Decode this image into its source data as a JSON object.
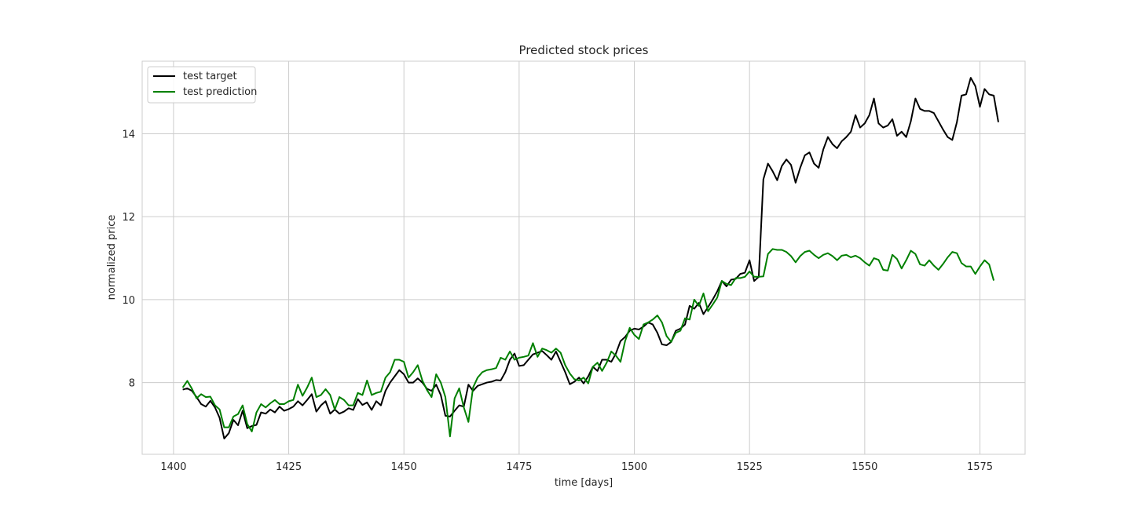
{
  "chart_data": {
    "type": "line",
    "title": "Predicted stock prices",
    "xlabel": "time [days]",
    "ylabel": "normalized price",
    "xlim": [
      1393.2,
      1584.8
    ],
    "ylim": [
      6.27,
      15.75
    ],
    "xticks": [
      1400,
      1425,
      1450,
      1475,
      1500,
      1525,
      1550,
      1575
    ],
    "yticks": [
      8,
      10,
      12,
      14
    ],
    "grid": true,
    "legend_position": "upper-left",
    "x_start": 1402,
    "colors": {
      "test_target": "#000000",
      "test_prediction": "#008000",
      "grid": "#cccccc",
      "axes": "#cccccc"
    },
    "series": [
      {
        "name": "test target",
        "color": "#000000",
        "values": [
          7.83,
          7.86,
          7.8,
          7.65,
          7.48,
          7.42,
          7.56,
          7.4,
          7.15,
          6.65,
          6.78,
          7.1,
          6.97,
          7.32,
          6.9,
          6.95,
          6.98,
          7.28,
          7.25,
          7.35,
          7.28,
          7.42,
          7.32,
          7.36,
          7.42,
          7.55,
          7.45,
          7.58,
          7.72,
          7.3,
          7.45,
          7.55,
          7.25,
          7.35,
          7.25,
          7.3,
          7.38,
          7.34,
          7.6,
          7.46,
          7.52,
          7.34,
          7.55,
          7.45,
          7.8,
          8.0,
          8.15,
          8.3,
          8.2,
          8.0,
          8.0,
          8.1,
          8.0,
          7.85,
          7.8,
          7.95,
          7.7,
          7.2,
          7.18,
          7.32,
          7.45,
          7.42,
          7.95,
          7.8,
          7.92,
          7.96,
          8.0,
          8.02,
          8.06,
          8.05,
          8.25,
          8.55,
          8.7,
          8.4,
          8.42,
          8.55,
          8.68,
          8.72,
          8.76,
          8.66,
          8.55,
          8.75,
          8.5,
          8.25,
          7.96,
          8.02,
          8.12,
          7.98,
          8.15,
          8.38,
          8.28,
          8.55,
          8.55,
          8.5,
          8.7,
          9.0,
          9.1,
          9.25,
          9.3,
          9.28,
          9.35,
          9.45,
          9.4,
          9.2,
          8.92,
          8.9,
          8.98,
          9.25,
          9.3,
          9.4,
          9.85,
          9.78,
          9.92,
          9.65,
          9.82,
          10.0,
          10.2,
          10.45,
          10.32,
          10.48,
          10.5,
          10.62,
          10.65,
          10.95,
          10.45,
          10.55,
          12.9,
          13.28,
          13.1,
          12.88,
          13.22,
          13.38,
          13.25,
          12.82,
          13.18,
          13.48,
          13.55,
          13.28,
          13.18,
          13.62,
          13.92,
          13.75,
          13.65,
          13.82,
          13.92,
          14.05,
          14.45,
          14.15,
          14.25,
          14.45,
          14.85,
          14.25,
          14.15,
          14.2,
          14.35,
          13.95,
          14.05,
          13.92,
          14.3,
          14.85,
          14.6,
          14.55,
          14.55,
          14.5,
          14.3,
          14.1,
          13.92,
          13.85,
          14.28,
          14.92,
          14.95,
          15.35,
          15.15,
          14.65,
          15.08,
          14.95,
          14.92,
          14.28
        ]
      },
      {
        "name": "test prediction",
        "color": "#008000",
        "values": [
          7.88,
          8.04,
          7.85,
          7.62,
          7.72,
          7.65,
          7.66,
          7.45,
          7.35,
          6.92,
          6.92,
          7.18,
          7.24,
          7.45,
          7.0,
          6.82,
          7.28,
          7.48,
          7.4,
          7.5,
          7.58,
          7.48,
          7.48,
          7.55,
          7.58,
          7.95,
          7.68,
          7.88,
          8.12,
          7.65,
          7.7,
          7.84,
          7.7,
          7.35,
          7.65,
          7.58,
          7.45,
          7.45,
          7.75,
          7.7,
          8.05,
          7.7,
          7.75,
          7.78,
          8.12,
          8.25,
          8.55,
          8.55,
          8.5,
          8.12,
          8.25,
          8.42,
          8.05,
          7.82,
          7.65,
          8.2,
          8.0,
          7.65,
          6.7,
          7.62,
          7.86,
          7.4,
          7.05,
          7.88,
          8.12,
          8.25,
          8.3,
          8.32,
          8.35,
          8.6,
          8.55,
          8.75,
          8.55,
          8.6,
          8.62,
          8.65,
          8.95,
          8.62,
          8.82,
          8.78,
          8.72,
          8.82,
          8.72,
          8.42,
          8.22,
          8.08,
          8.05,
          8.12,
          7.98,
          8.38,
          8.48,
          8.28,
          8.48,
          8.75,
          8.65,
          8.5,
          9.0,
          9.32,
          9.15,
          9.05,
          9.4,
          9.45,
          9.52,
          9.62,
          9.45,
          9.12,
          8.98,
          9.2,
          9.25,
          9.55,
          9.52,
          10.0,
          9.85,
          10.15,
          9.72,
          9.88,
          10.05,
          10.45,
          10.38,
          10.35,
          10.52,
          10.52,
          10.55,
          10.68,
          10.55,
          10.55,
          10.56,
          11.1,
          11.22,
          11.2,
          11.2,
          11.15,
          11.05,
          10.9,
          11.05,
          11.15,
          11.18,
          11.08,
          11.0,
          11.08,
          11.12,
          11.05,
          10.95,
          11.06,
          11.08,
          11.02,
          11.06,
          11.0,
          10.9,
          10.82,
          11.0,
          10.96,
          10.72,
          10.7,
          11.08,
          10.98,
          10.75,
          10.95,
          11.18,
          11.1,
          10.85,
          10.82,
          10.95,
          10.82,
          10.72,
          10.86,
          11.02,
          11.15,
          11.12,
          10.88,
          10.8,
          10.8,
          10.62,
          10.8,
          10.95,
          10.85,
          10.46
        ]
      }
    ]
  }
}
